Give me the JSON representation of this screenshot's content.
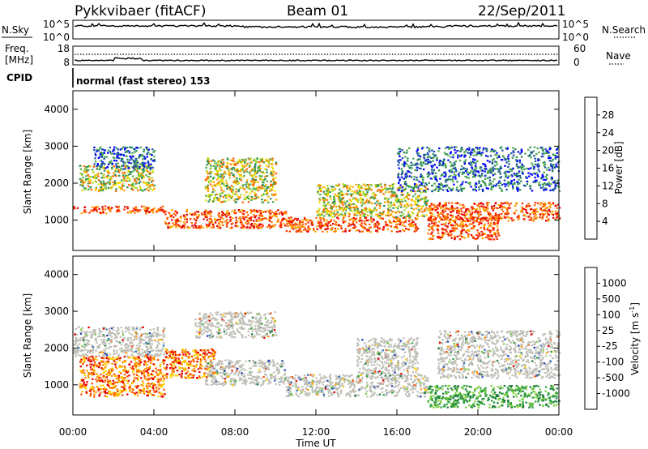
{
  "header": {
    "station": "Pykkvibaer (fitACF)",
    "beam": "Beam 01",
    "date": "22/Sep/2011",
    "cpid_label": "CPID",
    "cpid_value": "normal (fast stereo) 153"
  },
  "strips": {
    "nsky": {
      "label": "N.Sky",
      "ticks": [
        "10^5",
        "10^0"
      ]
    },
    "nsearch": {
      "label": "N.Search",
      "ticks": [
        "10^5",
        "10^0"
      ]
    },
    "freq": {
      "label_line1": "Freq.",
      "label_line2": "[MHz]",
      "ticks": [
        "18",
        "8"
      ]
    },
    "nave": {
      "label": "Nave",
      "ticks": [
        "60",
        "0"
      ]
    }
  },
  "chart_data": [
    {
      "type": "heatmap",
      "parameter": "Power",
      "ylabel": "Slant Range [km]",
      "xlabel": "Time UT",
      "ylim": [
        180,
        4500
      ],
      "xlim": [
        0,
        24
      ],
      "yticks": [
        "1000",
        "2000",
        "3000",
        "4000"
      ],
      "xticks": [
        "00:00",
        "04:00",
        "08:00",
        "12:00",
        "16:00",
        "20:00",
        "00:00"
      ],
      "colorbar": {
        "label": "Power [dB]",
        "ticks": [
          "28",
          "24",
          "20",
          "16",
          "12",
          "8",
          "4"
        ],
        "colors": [
          "#0000ff",
          "#1e4fa8",
          "#2e8b57",
          "#4aaa4a",
          "#a8d630",
          "#f0e000",
          "#ffa500",
          "#ff6a00",
          "#ff3000",
          "#e00000"
        ]
      },
      "echo_bands": [
        {
          "t_start": 0.0,
          "t_end": 4.5,
          "r_start": 1200,
          "r_end": 1400,
          "level": "high"
        },
        {
          "t_start": 0.3,
          "t_end": 4.0,
          "r_start": 1800,
          "r_end": 2500,
          "level": "medium"
        },
        {
          "t_start": 1.0,
          "t_end": 4.0,
          "r_start": 2400,
          "r_end": 3000,
          "level": "low"
        },
        {
          "t_start": 4.5,
          "t_end": 10.5,
          "r_start": 800,
          "r_end": 1300,
          "level": "high"
        },
        {
          "t_start": 6.5,
          "t_end": 10.0,
          "r_start": 1500,
          "r_end": 2700,
          "level": "medium"
        },
        {
          "t_start": 10.5,
          "t_end": 17.0,
          "r_start": 700,
          "r_end": 1100,
          "level": "high"
        },
        {
          "t_start": 12.0,
          "t_end": 17.5,
          "r_start": 1100,
          "r_end": 2000,
          "level": "medium"
        },
        {
          "t_start": 17.5,
          "t_end": 21.0,
          "r_start": 500,
          "r_end": 1100,
          "level": "high"
        },
        {
          "t_start": 17.5,
          "t_end": 24.0,
          "r_start": 1000,
          "r_end": 1500,
          "level": "high"
        },
        {
          "t_start": 16.0,
          "t_end": 24.0,
          "r_start": 1800,
          "r_end": 3000,
          "level": "low"
        }
      ]
    },
    {
      "type": "heatmap",
      "parameter": "Velocity",
      "ylabel": "Slant Range [km]",
      "xlabel": "Time UT",
      "ylim": [
        180,
        4500
      ],
      "xlim": [
        0,
        24
      ],
      "yticks": [
        "1000",
        "2000",
        "3000",
        "4000"
      ],
      "xticks": [
        "00:00",
        "04:00",
        "08:00",
        "12:00",
        "16:00",
        "20:00",
        "00:00"
      ],
      "colorbar": {
        "label": "Velocity [m s",
        "label_sup": "-1",
        "label_end": "]",
        "ticks": [
          "1000",
          "500",
          "100",
          "25",
          "-25",
          "-100",
          "-500",
          "-1000"
        ],
        "colors": [
          "#2040b0",
          "#2a6fc0",
          "#1a7a3a",
          "#2f9f3f",
          "#7fd040",
          "#bfbfb7",
          "#ffd000",
          "#ff9000",
          "#ff5000",
          "#e00000"
        ]
      },
      "echo_bands": [
        {
          "t_start": 0.0,
          "t_end": 4.5,
          "r_start": 1800,
          "r_end": 2600,
          "level": "ground"
        },
        {
          "t_start": 0.3,
          "t_end": 4.5,
          "r_start": 700,
          "r_end": 1800,
          "level": "negative"
        },
        {
          "t_start": 4.5,
          "t_end": 7.0,
          "r_start": 1200,
          "r_end": 2000,
          "level": "negative"
        },
        {
          "t_start": 6.5,
          "t_end": 10.5,
          "r_start": 1000,
          "r_end": 1700,
          "level": "ground"
        },
        {
          "t_start": 6.0,
          "t_end": 10.0,
          "r_start": 2300,
          "r_end": 3000,
          "level": "ground"
        },
        {
          "t_start": 10.5,
          "t_end": 17.5,
          "r_start": 700,
          "r_end": 1300,
          "level": "ground"
        },
        {
          "t_start": 14.0,
          "t_end": 17.0,
          "r_start": 1300,
          "r_end": 2300,
          "level": "ground"
        },
        {
          "t_start": 17.5,
          "t_end": 24.0,
          "r_start": 400,
          "r_end": 1000,
          "level": "positive"
        },
        {
          "t_start": 18.0,
          "t_end": 24.0,
          "r_start": 1200,
          "r_end": 2500,
          "level": "ground"
        }
      ]
    }
  ]
}
